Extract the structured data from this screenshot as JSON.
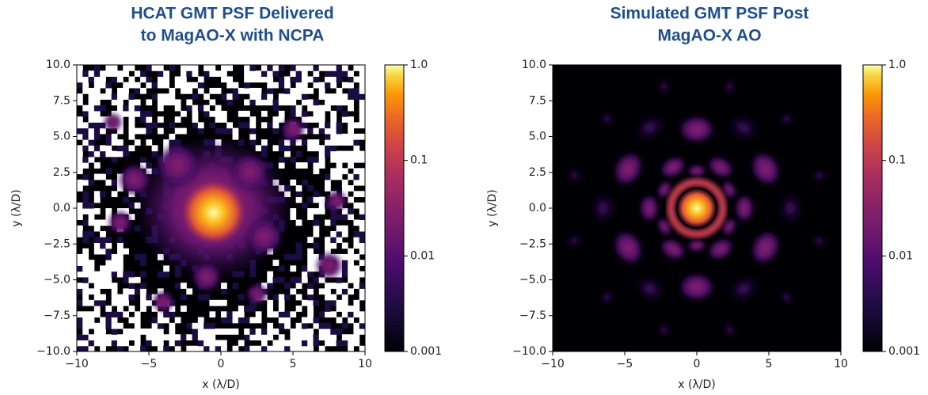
{
  "chart_data": [
    {
      "type": "heatmap",
      "title": [
        "HCAT GMT PSF Delivered",
        "to MagAO-X with NCPA"
      ],
      "xlabel": "x (λ/D)",
      "ylabel": "y (λ/D)",
      "xlim": [
        -10,
        10
      ],
      "ylim": [
        -10,
        10
      ],
      "xticks": [
        {
          "value": -10,
          "label": "−10"
        },
        {
          "value": -5,
          "label": "−5"
        },
        0,
        5,
        10
      ],
      "yticks": [
        {
          "value": -10,
          "label": "−10.0"
        },
        {
          "value": -7.5,
          "label": "−7.5"
        },
        {
          "value": -5,
          "label": "−5.0"
        },
        {
          "value": -2.5,
          "label": "−2.5"
        },
        {
          "value": 0,
          "label": "0.0"
        },
        2.5,
        {
          "value": 5,
          "label": "5.0"
        },
        7.5,
        {
          "value": 10,
          "label": "10.0"
        }
      ],
      "colormap": "inferno",
      "colorbar": {
        "scale": "log",
        "lim": [
          0.001,
          1
        ],
        "ticks": [
          0.001,
          0.01,
          0.1,
          {
            "value": 1,
            "label": "1.0"
          }
        ]
      }
    },
    {
      "type": "heatmap",
      "title": [
        "Simulated GMT PSF Post",
        "MagAO-X AO"
      ],
      "xlabel": "x (λ/D)",
      "ylabel": "y (λ/D)",
      "xlim": [
        -10,
        10
      ],
      "ylim": [
        -10,
        10
      ],
      "xticks": [
        {
          "value": -10,
          "label": "−10"
        },
        {
          "value": -5,
          "label": "−5"
        },
        0,
        5,
        10
      ],
      "yticks": [
        {
          "value": -10,
          "label": "−10.0"
        },
        {
          "value": -7.5,
          "label": "−7.5"
        },
        {
          "value": -5,
          "label": "−5.0"
        },
        {
          "value": -2.5,
          "label": "−2.5"
        },
        {
          "value": 0,
          "label": "0.0"
        },
        2.5,
        {
          "value": 5,
          "label": "5.0"
        },
        7.5,
        {
          "value": 10,
          "label": "10.0"
        }
      ],
      "colormap": "inferno",
      "colorbar": {
        "scale": "log",
        "lim": [
          0.001,
          1
        ],
        "ticks": [
          0.001,
          0.01,
          0.1,
          {
            "value": 1,
            "label": "1.0"
          }
        ]
      }
    }
  ]
}
